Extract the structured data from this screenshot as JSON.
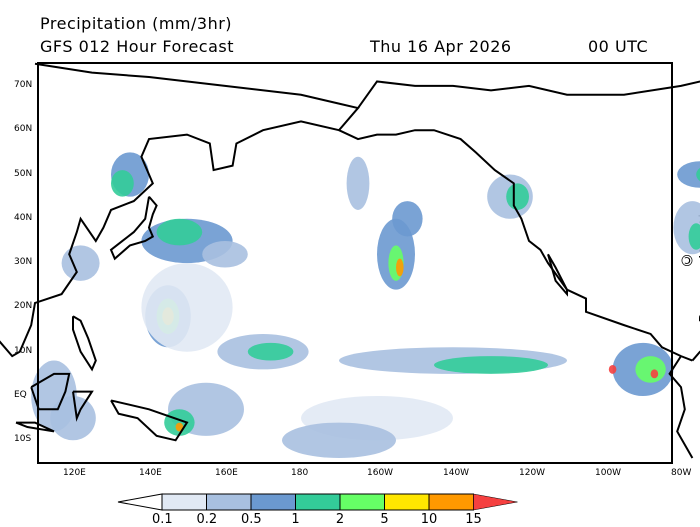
{
  "header": {
    "title": "Precipitation (mm/3hr)",
    "model": "GFS 012 Hour Forecast",
    "date": "Thu 16 Apr 2026",
    "time": "00 UTC"
  },
  "watermark": "© www.PassageWeather.com",
  "lat_labels": [
    "70N",
    "60N",
    "50N",
    "40N",
    "30N",
    "20N",
    "10N",
    "EQ",
    "10S"
  ],
  "lon_labels": [
    "120E",
    "140E",
    "160E",
    "180",
    "160W",
    "140W",
    "120W",
    "100W",
    "80W"
  ],
  "legend": {
    "ticks": [
      "0.1",
      "0.2",
      "0.5",
      "1",
      "2",
      "5",
      "10",
      "15"
    ],
    "colors": [
      "#ffffff",
      "#e1e9f4",
      "#a8c0e0",
      "#6b99d0",
      "#33cc99",
      "#66ff66",
      "#ffe600",
      "#ff9900",
      "#f54040"
    ]
  }
}
